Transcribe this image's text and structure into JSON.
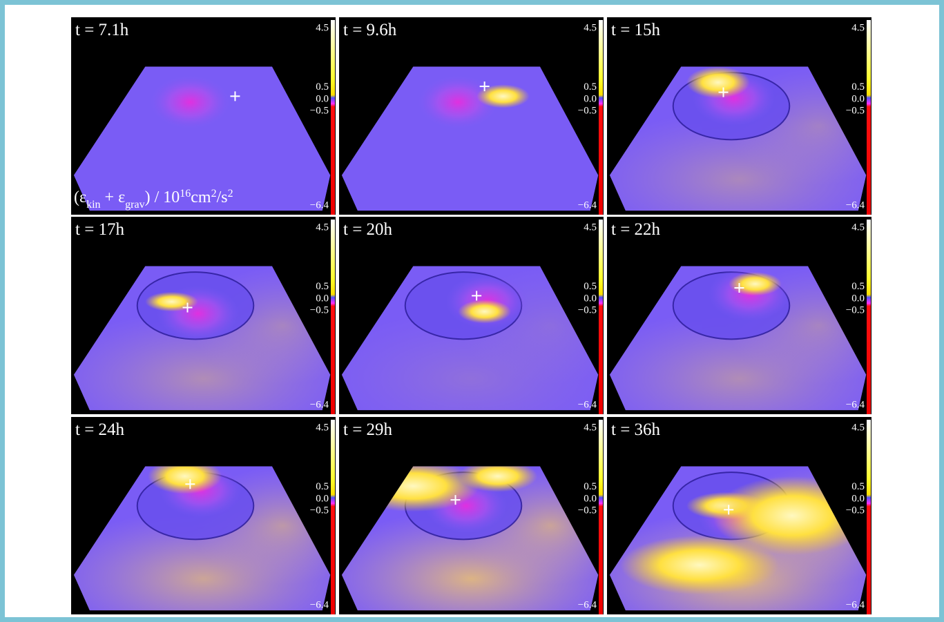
{
  "panels": [
    {
      "time": "t = 7.1h"
    },
    {
      "time": "t = 9.6h"
    },
    {
      "time": "t = 15h"
    },
    {
      "time": "t = 17h"
    },
    {
      "time": "t = 20h"
    },
    {
      "time": "t = 22h"
    },
    {
      "time": "t = 24h"
    },
    {
      "time": "t = 29h"
    },
    {
      "time": "t = 36h"
    }
  ],
  "colorbar": {
    "ticks": [
      "4.5",
      "0.5",
      "0.0",
      "−0.5",
      "−6.4"
    ]
  },
  "colorbar_label": [
    "(ε",
    "kin",
    " + ε",
    "grav",
    ") / 10",
    "16",
    "cm",
    "2",
    "/s",
    "2"
  ]
}
